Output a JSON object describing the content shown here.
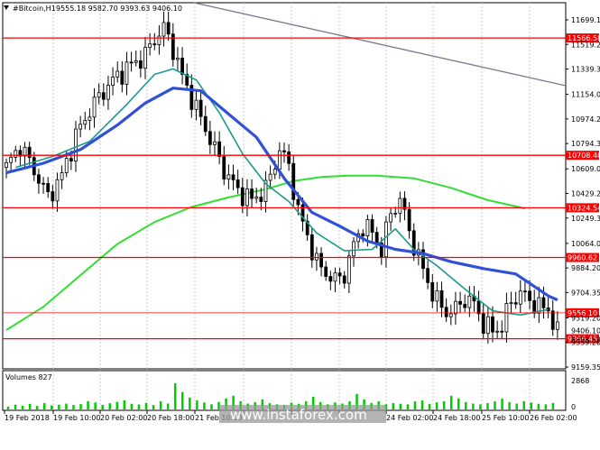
{
  "header": {
    "symbol": "#Bitcoin,H1",
    "ohlc": "9555.18 9582.70 9393.63 9406.10",
    "collapse_icon": "triangle-down-icon"
  },
  "volume_label": "Volumes 827",
  "watermark": "www.instaforex.com",
  "colors": {
    "candle": "#000000",
    "ma_fast": "#1a9a8a",
    "ma_mid": "#3050d8",
    "ma_slow": "#33dd33",
    "level": "#ff0000",
    "trendline": "#7a7a90",
    "volume": "#00cc00",
    "grid": "#c8c8c8"
  },
  "chart_data": {
    "type": "candlestick",
    "ylim": [
      9159.35,
      11699.1
    ],
    "y_ticks": [
      "11699.10",
      "11519.20",
      "11339.30",
      "11154.00",
      "10974.20",
      "10794.35",
      "10609.05",
      "10429.20",
      "10249.35",
      "10064.05",
      "9884.20",
      "9704.35",
      "9519.20",
      "9339.20",
      "9159.35"
    ],
    "x_ticks": [
      "19 Feb 2018",
      "19 Feb 10:00",
      "20 Feb 02:00",
      "20 Feb 18:00",
      "21 Feb 10:00",
      "",
      "",
      "",
      "24 Feb 02:00",
      "24 Feb 18:00",
      "25 Feb 10:00",
      "26 Feb 02:00"
    ],
    "levels": [
      {
        "label": "11566.58",
        "value": 11566.58
      },
      {
        "label": "10708.40",
        "value": 10708.4
      },
      {
        "label": "10324.54",
        "value": 10324.54
      },
      {
        "label": "9960.62",
        "value": 9960.62
      },
      {
        "label": "9556.10",
        "value": 9556.1
      },
      {
        "label": "9366.45",
        "value": 9366.45
      }
    ],
    "small_ticks": [
      "9406.10",
      "9393.53"
    ],
    "volume_axis": {
      "max_label": "2868",
      "min_label": "0",
      "max": 2868
    },
    "price_path": [
      [
        0,
        10620
      ],
      [
        3,
        10780
      ],
      [
        6,
        10600
      ],
      [
        9,
        10400
      ],
      [
        12,
        10560
      ],
      [
        15,
        10850
      ],
      [
        18,
        11040
      ],
      [
        21,
        11180
      ],
      [
        24,
        11290
      ],
      [
        27,
        11370
      ],
      [
        30,
        11440
      ],
      [
        32,
        11560
      ],
      [
        34,
        11640
      ],
      [
        36,
        11490
      ],
      [
        38,
        11280
      ],
      [
        41,
        11050
      ],
      [
        44,
        10830
      ],
      [
        47,
        10600
      ],
      [
        50,
        10450
      ],
      [
        53,
        10380
      ],
      [
        56,
        10460
      ],
      [
        59,
        10750
      ],
      [
        61,
        10630
      ],
      [
        63,
        10300
      ],
      [
        65,
        10120
      ],
      [
        67,
        9920
      ],
      [
        69,
        9850
      ],
      [
        71,
        9790
      ],
      [
        73,
        9840
      ],
      [
        75,
        10050
      ],
      [
        77,
        10200
      ],
      [
        79,
        10140
      ],
      [
        81,
        10020
      ],
      [
        83,
        10280
      ],
      [
        85,
        10390
      ],
      [
        87,
        10150
      ],
      [
        89,
        9960
      ],
      [
        91,
        9780
      ],
      [
        93,
        9640
      ],
      [
        95,
        9560
      ],
      [
        97,
        9580
      ],
      [
        99,
        9660
      ],
      [
        101,
        9620
      ],
      [
        103,
        9480
      ],
      [
        105,
        9420
      ],
      [
        107,
        9460
      ],
      [
        109,
        9640
      ],
      [
        111,
        9700
      ],
      [
        113,
        9650
      ],
      [
        115,
        9600
      ],
      [
        117,
        9580
      ],
      [
        119,
        9406
      ]
    ],
    "ma_fast": [
      [
        2,
        10620
      ],
      [
        10,
        10700
      ],
      [
        18,
        10810
      ],
      [
        26,
        11080
      ],
      [
        32,
        11300
      ],
      [
        36,
        11340
      ],
      [
        41,
        11260
      ],
      [
        46,
        11020
      ],
      [
        51,
        10720
      ],
      [
        56,
        10500
      ],
      [
        61,
        10370
      ],
      [
        67,
        10140
      ],
      [
        73,
        10010
      ],
      [
        79,
        10020
      ],
      [
        84,
        10170
      ],
      [
        88,
        10020
      ],
      [
        93,
        9900
      ],
      [
        99,
        9730
      ],
      [
        105,
        9570
      ],
      [
        111,
        9540
      ],
      [
        117,
        9580
      ]
    ],
    "ma_mid": [
      [
        0,
        10580
      ],
      [
        8,
        10650
      ],
      [
        16,
        10750
      ],
      [
        24,
        10930
      ],
      [
        30,
        11090
      ],
      [
        36,
        11200
      ],
      [
        42,
        11180
      ],
      [
        48,
        11010
      ],
      [
        54,
        10840
      ],
      [
        60,
        10540
      ],
      [
        66,
        10290
      ],
      [
        72,
        10190
      ],
      [
        78,
        10080
      ],
      [
        84,
        10020
      ],
      [
        90,
        9990
      ],
      [
        96,
        9930
      ],
      [
        103,
        9880
      ],
      [
        110,
        9840
      ],
      [
        117,
        9680
      ],
      [
        119,
        9650
      ]
    ],
    "ma_slow": [
      [
        0,
        9430
      ],
      [
        8,
        9600
      ],
      [
        16,
        9830
      ],
      [
        24,
        10060
      ],
      [
        32,
        10220
      ],
      [
        40,
        10330
      ],
      [
        48,
        10400
      ],
      [
        56,
        10460
      ],
      [
        62,
        10520
      ],
      [
        68,
        10550
      ],
      [
        74,
        10560
      ],
      [
        80,
        10560
      ],
      [
        88,
        10540
      ],
      [
        96,
        10470
      ],
      [
        104,
        10380
      ],
      [
        112,
        10320
      ]
    ],
    "volumes": [
      320,
      520,
      410,
      610,
      380,
      700,
      450,
      520,
      640,
      480,
      580,
      900,
      760,
      500,
      680,
      820,
      1000,
      620,
      540,
      720,
      480,
      900,
      640,
      2868,
      1900,
      1300,
      980,
      760,
      560,
      820,
      1200,
      1500,
      900,
      640,
      780,
      1100,
      680,
      560,
      500,
      740,
      620,
      900,
      1400,
      800,
      560,
      760,
      640,
      900,
      1700,
      1100,
      700,
      880,
      560,
      700,
      620,
      560,
      880,
      980,
      600,
      780,
      900,
      1500,
      1200,
      800,
      640,
      560,
      700,
      880,
      1180,
      800,
      640,
      900,
      760,
      620,
      560,
      700
    ]
  }
}
